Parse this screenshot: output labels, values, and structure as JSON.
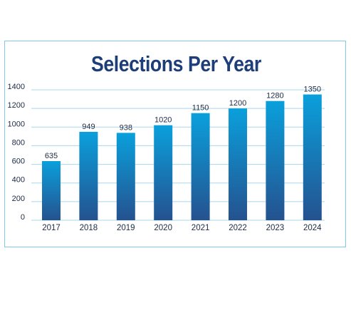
{
  "chart_data": {
    "type": "bar",
    "title": "Selections Per Year",
    "xlabel": "",
    "ylabel": "",
    "categories": [
      "2017",
      "2018",
      "2019",
      "2020",
      "2021",
      "2022",
      "2023",
      "2024"
    ],
    "values": [
      635,
      949,
      938,
      1020,
      1150,
      1200,
      1280,
      1350
    ],
    "data_labels": [
      "635",
      "949",
      "938",
      "1020",
      "1150",
      "1200",
      "1280",
      "1350"
    ],
    "yticks": [
      0,
      200,
      400,
      600,
      800,
      1000,
      1200,
      1400
    ],
    "ylim": [
      0,
      1400
    ],
    "grid": true,
    "legend": "none",
    "colors": {
      "bar_top": "#0aa0dc",
      "bar_bottom": "#24528f",
      "grid": "#a8d8ea",
      "border": "#7fcbe6",
      "title": "#1d3e78"
    }
  }
}
